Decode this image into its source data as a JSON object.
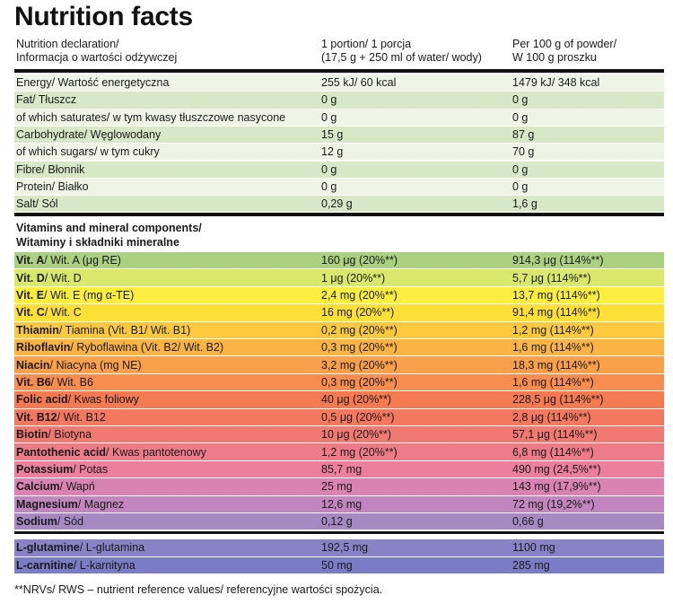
{
  "title": "Nutrition facts",
  "header": {
    "col1_line1": "Nutrition declaration/",
    "col1_line2": "Informacja o wartości odżywczej",
    "col2_line1": "1 portion/ 1 porcja",
    "col2_line2": "(17,5 g + 250 ml of water/ wody)",
    "col3_line1": "Per 100 g of powder/",
    "col3_line2": "W 100 g proszku"
  },
  "nutrition_rows": [
    {
      "name": "Energy/ Wartość energetyczna",
      "portion": "255 kJ/ 60 kcal",
      "per100": "1479 kJ/ 348 kcal"
    },
    {
      "name": "Fat/ Tłuszcz",
      "portion": "0 g",
      "per100": "0 g"
    },
    {
      "name": "of which saturates/ w tym kwasy tłuszczowe nasycone",
      "portion": "0 g",
      "per100": "0 g"
    },
    {
      "name": "Carbohydrate/ Węglowodany",
      "portion": "15 g",
      "per100": "87 g"
    },
    {
      "name": "of which sugars/ w tym cukry",
      "portion": "12 g",
      "per100": "70 g"
    },
    {
      "name": "Fibre/ Błonnik",
      "portion": "0 g",
      "per100": "0 g"
    },
    {
      "name": "Protein/ Białko",
      "portion": "0 g",
      "per100": "0 g"
    },
    {
      "name": "Salt/ Sól",
      "portion": "0,29 g",
      "per100": "1,6 g"
    }
  ],
  "vitamins_title_line1": "Vitamins and mineral components/",
  "vitamins_title_line2": "Witaminy i składniki mineralne",
  "vitamin_rows": [
    {
      "bold": "Vit. A",
      "rest": "/ Wit. A (μg RE)",
      "portion": "160 μg (20%**)",
      "per100": "914,3 μg (114%**)",
      "color": "#a9d17f"
    },
    {
      "bold": "Vit. D",
      "rest": "/ Wit. D",
      "portion": "1 μg (20%**)",
      "per100": "5,7 μg (114%**)",
      "color": "#d9e86a"
    },
    {
      "bold": "Vit. E",
      "rest": "/ Wit. E (mg α-TE)",
      "portion": "2,4 mg (20%**)",
      "per100": "13,7 mg (114%**)",
      "color": "#fbee3e"
    },
    {
      "bold": "Vit. C",
      "rest": "/ Wit. C",
      "portion": "16 mg (20%**)",
      "per100": "91,4 mg (114%**)",
      "color": "#fde036"
    },
    {
      "bold": "Thiamin",
      "rest": "/ Tiamina (Vit. B1/ Wit. B1)",
      "portion": "0,2 mg (20%**)",
      "per100": "1,2 mg (114%**)",
      "color": "#fcc93c"
    },
    {
      "bold": "Riboflavin",
      "rest": "/ Ryboflawina (Vit. B2/ Wit. B2)",
      "portion": "0,3 mg (20%**)",
      "per100": "1,6 mg (114%**)",
      "color": "#fbb444"
    },
    {
      "bold": "Niacin",
      "rest": "/ Niacyna (mg NE)",
      "portion": "3,2 mg (20%**)",
      "per100": "18,3 mg (114%**)",
      "color": "#f9a04a"
    },
    {
      "bold": "Vit. B6",
      "rest": "/ Wit. B6",
      "portion": "0,3 mg (20%**)",
      "per100": "1,6 mg (114%**)",
      "color": "#f78d4e"
    },
    {
      "bold": "Folic acid",
      "rest": "/ Kwas foliowy",
      "portion": "40 μg (20%**)",
      "per100": "228,5 μg (114%**)",
      "color": "#f47a52"
    },
    {
      "bold": "Vit. B12",
      "rest": "/ Wit. B12",
      "portion": "0,5 μg (20%**)",
      "per100": "2,8 μg (114%**)",
      "color": "#f27860"
    },
    {
      "bold": "Biotin",
      "rest": "/ Biotyna",
      "portion": "10 μg (20%**)",
      "per100": "57,1 μg (114%**)",
      "color": "#f07a72"
    },
    {
      "bold": "Pantothenic acid",
      "rest": "/ Kwas pantotenowy",
      "portion": "1,2 mg (20%**)",
      "per100": "6,8 mg (114%**)",
      "color": "#ee7c88"
    },
    {
      "bold": "Potassium",
      "rest": "/ Potas",
      "portion": "85,7 mg",
      "per100": "490 mg (24,5%**)",
      "color": "#ec7f9e"
    },
    {
      "bold": "Calcium",
      "rest": "/ Wapń",
      "portion": "25 mg",
      "per100": "143 mg (17,9%**)",
      "color": "#d883b2"
    },
    {
      "bold": "Magnesium",
      "rest": "/ Magnez",
      "portion": "12,6 mg",
      "per100": "72 mg (19,2%**)",
      "color": "#c086bd"
    },
    {
      "bold": "Sodium",
      "rest": "/ Sód",
      "portion": "0,12 g",
      "per100": "0,66 g",
      "color": "#a688c3"
    }
  ],
  "amino_rows": [
    {
      "bold": "L-glutamine",
      "rest": "/ L-glutamina",
      "portion": "192,5 mg",
      "per100": "1100 mg",
      "color": "#8a82c6"
    },
    {
      "bold": "L-carnitine",
      "rest": "/ L-karnityna",
      "portion": "50 mg",
      "per100": "285 mg",
      "color": "#7a7cc6"
    }
  ],
  "footnote": "**NRVs/ RWS – nutrient reference values/ referencyjne wartości spożycia.",
  "colors": {
    "nutrition_light": "#eef5e6",
    "nutrition_dark": "#d6e8c6",
    "rule": "#111111"
  }
}
